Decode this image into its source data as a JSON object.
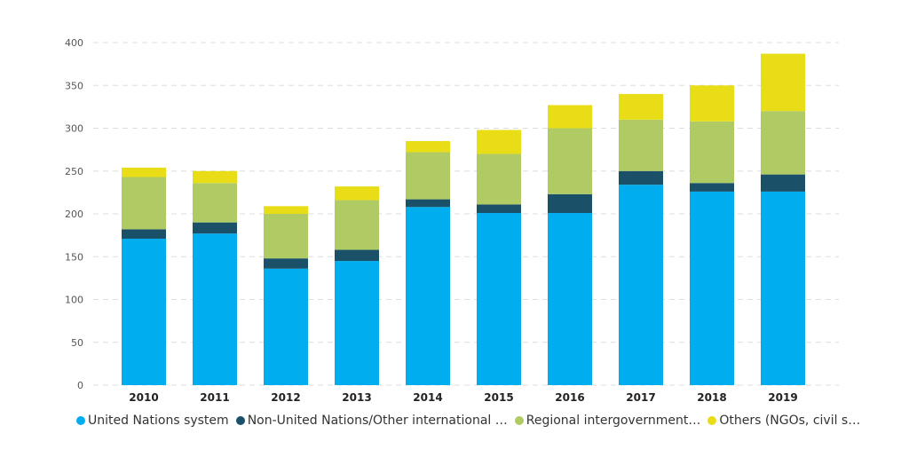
{
  "chart_data": {
    "type": "bar",
    "stacked": true,
    "title": "",
    "xlabel": "",
    "ylabel": "",
    "ylim": [
      0,
      400
    ],
    "yticks": [
      0,
      50,
      100,
      150,
      200,
      250,
      300,
      350,
      400
    ],
    "grid": true,
    "legend_position": "bottom",
    "categories": [
      "2010",
      "2011",
      "2012",
      "2013",
      "2014",
      "2015",
      "2016",
      "2017",
      "2018",
      "2019"
    ],
    "series": [
      {
        "name": "United Nations system",
        "color": "#00aeef",
        "values": [
          171,
          177,
          136,
          145,
          208,
          201,
          201,
          234,
          226,
          226
        ]
      },
      {
        "name": "Non-United Nations/Other international …",
        "color": "#1a5068",
        "values": [
          11,
          13,
          12,
          13,
          9,
          10,
          22,
          16,
          10,
          20
        ]
      },
      {
        "name": "Regional intergovernment…",
        "color": "#b0cb64",
        "values": [
          61,
          46,
          52,
          58,
          55,
          59,
          77,
          60,
          72,
          74
        ]
      },
      {
        "name": "Others (NGOs, civil s…",
        "color": "#e8dd17",
        "values": [
          11,
          14,
          9,
          16,
          13,
          28,
          27,
          30,
          42,
          67
        ]
      }
    ]
  }
}
